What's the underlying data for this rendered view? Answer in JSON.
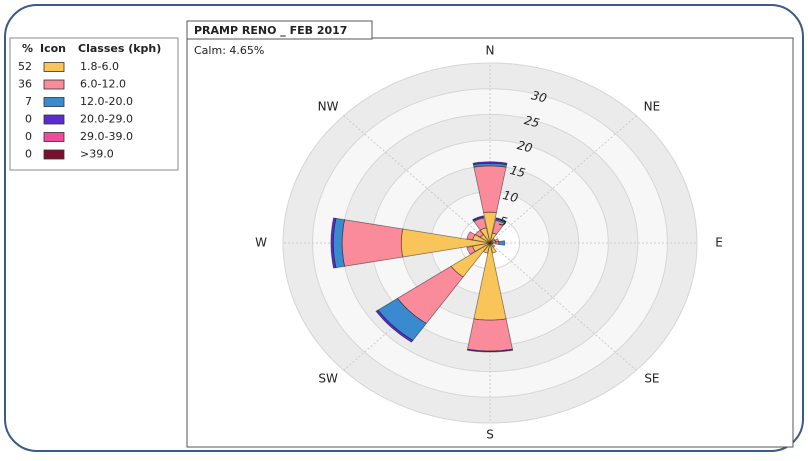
{
  "chart_data": {
    "type": "windrose",
    "title": "PRAMP RENO _ FEB 2017",
    "subtitle": "Calm: 4.65%",
    "legend_headers": [
      "%",
      "Icon",
      "Classes (kph)"
    ],
    "categories": [
      "N",
      null,
      "NE",
      null,
      "E",
      null,
      "SE",
      null,
      "S",
      null,
      "SW",
      null,
      "W",
      null,
      "NW",
      null
    ],
    "series": [
      {
        "name": "1.8-6.0",
        "percent": 52,
        "color": "#f9c55a",
        "values": [
          6,
          2,
          0.5,
          1,
          1,
          0.5,
          1,
          2,
          15,
          2,
          8,
          3,
          15,
          3,
          2,
          3
        ]
      },
      {
        "name": "6.0-12.0",
        "percent": 36,
        "color": "#f98b9a",
        "values": [
          9,
          2.5,
          0.5,
          0.5,
          0.5,
          0,
          0,
          0,
          6,
          0,
          11,
          1,
          10,
          1,
          1,
          2
        ]
      },
      {
        "name": "12.0-20.0",
        "percent": 7,
        "color": "#3a8ad0",
        "values": [
          0.5,
          0.3,
          0,
          0,
          1,
          0,
          0,
          0,
          0,
          0,
          4,
          0,
          1.5,
          0,
          0,
          0.2
        ]
      },
      {
        "name": "20.0-29.0",
        "percent": 0,
        "color": "#5b2bd0",
        "values": [
          0.3,
          0.2,
          0,
          0,
          0,
          0,
          0,
          0,
          0.2,
          0,
          0.4,
          0,
          0.4,
          0,
          0,
          0.2
        ]
      },
      {
        "name": "29.0-39.0",
        "percent": 0,
        "color": "#f04a9a",
        "values": [
          0,
          0,
          0,
          0,
          0,
          0,
          0,
          0,
          0,
          0,
          0,
          0,
          0,
          0,
          0,
          0
        ]
      },
      {
        "name": ">39.0",
        "percent": 0,
        "color": "#7a1030",
        "values": [
          0,
          0,
          0,
          0,
          0,
          0,
          0,
          0,
          0,
          0,
          0,
          0,
          0,
          0,
          0,
          0
        ]
      }
    ],
    "ylim": [
      0,
      35
    ],
    "yticks": [
      5,
      10,
      15,
      20,
      25,
      30
    ],
    "grid": true
  }
}
